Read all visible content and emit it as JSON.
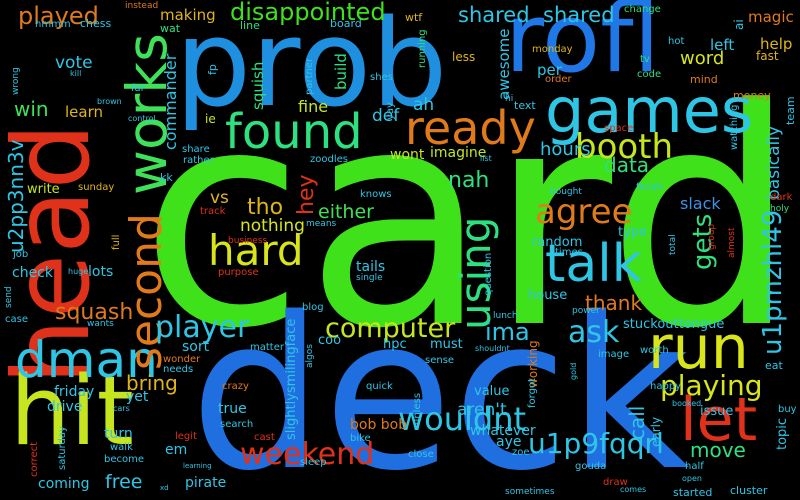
{
  "title": "word cloud",
  "background": "#000000",
  "words": [
    {
      "text": "card",
      "color": "#3fe11a"
    },
    {
      "text": "deck",
      "color": "#1f6fe0"
    },
    {
      "text": "head",
      "color": "#e0311a"
    },
    {
      "text": "hit",
      "color": "#c6e51f"
    },
    {
      "text": "prob",
      "color": "#1f8fe0"
    },
    {
      "text": "rofl",
      "color": "#1f78e6"
    },
    {
      "text": "games",
      "color": "#2fc6e6"
    },
    {
      "text": "works",
      "color": "#3fe15a"
    },
    {
      "text": "found",
      "color": "#2de080"
    },
    {
      "text": "ready",
      "color": "#e07a1a"
    },
    {
      "text": "run",
      "color": "#d7e51a"
    },
    {
      "text": "let",
      "color": "#e0311a"
    },
    {
      "text": "talk",
      "color": "#2fc6e6"
    },
    {
      "text": "dman",
      "color": "#2fc6e6"
    },
    {
      "text": "second",
      "color": "#e07a1a"
    },
    {
      "text": "hard",
      "color": "#d7e51a"
    },
    {
      "text": "using",
      "color": "#2de080"
    },
    {
      "text": "booth",
      "color": "#c6e51f"
    },
    {
      "text": "agree",
      "color": "#e07a1a"
    },
    {
      "text": "player",
      "color": "#2fc6e6"
    },
    {
      "text": "weekend",
      "color": "#e0311a"
    },
    {
      "text": "wouldnt",
      "color": "#2fc6e6"
    },
    {
      "text": "u1p9fqqrl",
      "color": "#2fc6e6"
    },
    {
      "text": "computer",
      "color": "#c6e51f"
    },
    {
      "text": "u1pmzhl49",
      "color": "#2fc6e6"
    },
    {
      "text": "playing",
      "color": "#d7e51a"
    },
    {
      "text": "gets",
      "color": "#2de080"
    },
    {
      "text": "disappointed",
      "color": "#3fe11a"
    },
    {
      "text": "shared",
      "color": "#2fc6e6"
    },
    {
      "text": "shared",
      "color": "#2fc6e6"
    },
    {
      "text": "magic",
      "color": "#e07a1a"
    },
    {
      "text": "played",
      "color": "#e07a1a"
    },
    {
      "text": "u2pp3nn3v",
      "color": "#2fc6e6"
    },
    {
      "text": "squash",
      "color": "#e07a1a"
    },
    {
      "text": "bring",
      "color": "#e0b51a"
    },
    {
      "text": "ask",
      "color": "#2fc6e6"
    },
    {
      "text": "ima",
      "color": "#2fc6e6"
    },
    {
      "text": "nah",
      "color": "#2de080"
    },
    {
      "text": "hey",
      "color": "#e0311a"
    },
    {
      "text": "tho",
      "color": "#e0b51a"
    },
    {
      "text": "vs",
      "color": "#e0b51a"
    },
    {
      "text": "nothing",
      "color": "#d7e51a"
    },
    {
      "text": "either",
      "color": "#3fe15a"
    },
    {
      "text": "thank",
      "color": "#e07a1a"
    },
    {
      "text": "call",
      "color": "#2fc6e6"
    },
    {
      "text": "move",
      "color": "#2de080"
    },
    {
      "text": "data",
      "color": "#2de080"
    },
    {
      "text": "hours",
      "color": "#2fc6e6"
    },
    {
      "text": "word",
      "color": "#d7e51a"
    },
    {
      "text": "basically",
      "color": "#2fc6e6"
    },
    {
      "text": "slack",
      "color": "#3f8fe6"
    },
    {
      "text": "commander",
      "color": "#2fc6e6"
    },
    {
      "text": "win",
      "color": "#3fe15a"
    },
    {
      "text": "vote",
      "color": "#2fc6e6"
    },
    {
      "text": "learn",
      "color": "#e0b51a"
    },
    {
      "text": "making",
      "color": "#e0b51a"
    },
    {
      "text": "left",
      "color": "#2fc6e6"
    },
    {
      "text": "help",
      "color": "#e0b51a"
    },
    {
      "text": "per",
      "color": "#2fc6e6"
    },
    {
      "text": "awesome",
      "color": "#2fc6e6"
    },
    {
      "text": "def",
      "color": "#2fc6e6"
    },
    {
      "text": "ah",
      "color": "#2fc6e6"
    },
    {
      "text": "fine",
      "color": "#c6e51f"
    },
    {
      "text": "build",
      "color": "#2de080"
    },
    {
      "text": "squish",
      "color": "#2de080"
    },
    {
      "text": "imagine",
      "color": "#c6e51f"
    },
    {
      "text": "wont",
      "color": "#c6e51f"
    },
    {
      "text": "chess",
      "color": "#2fc6e6"
    },
    {
      "text": "hmmm",
      "color": "#2fc6e6"
    },
    {
      "text": "instead",
      "color": "#e07a1a"
    },
    {
      "text": "board",
      "color": "#2fc6e6"
    },
    {
      "text": "wtf",
      "color": "#e0b51a"
    },
    {
      "text": "change",
      "color": "#2de080"
    },
    {
      "text": "wat",
      "color": "#2de080"
    },
    {
      "text": "line",
      "color": "#2de080"
    },
    {
      "text": "running",
      "color": "#2de080"
    },
    {
      "text": "less",
      "color": "#e0b51a"
    },
    {
      "text": "monday",
      "color": "#e0b51a"
    },
    {
      "text": "tv",
      "color": "#2de080"
    },
    {
      "text": "code",
      "color": "#2de080"
    },
    {
      "text": "fast",
      "color": "#e0b51a"
    },
    {
      "text": "mind",
      "color": "#e07a1a"
    },
    {
      "text": "money",
      "color": "#e07a1a"
    },
    {
      "text": "team",
      "color": "#2fc6e6"
    },
    {
      "text": "hot",
      "color": "#2fc6e6"
    },
    {
      "text": "ai",
      "color": "#2fc6e6"
    },
    {
      "text": "order",
      "color": "#e07a1a"
    },
    {
      "text": "text",
      "color": "#2fc6e6"
    },
    {
      "text": "space",
      "color": "#e0311a"
    },
    {
      "text": "watching",
      "color": "#2fc6e6"
    },
    {
      "text": "fp",
      "color": "#2fc6e6"
    },
    {
      "text": "shes",
      "color": "#2fc6e6"
    },
    {
      "text": "yay",
      "color": "#2fc6e6"
    },
    {
      "text": "partner",
      "color": "#2fc6e6"
    },
    {
      "text": "ie",
      "color": "#c6e51f"
    },
    {
      "text": "share",
      "color": "#2fc6e6"
    },
    {
      "text": "rather",
      "color": "#2fc6e6"
    },
    {
      "text": "kk",
      "color": "#2fc6e6"
    },
    {
      "text": "zoodles",
      "color": "#2fc6e6"
    },
    {
      "text": "sunday",
      "color": "#e0b51a"
    },
    {
      "text": "write",
      "color": "#c6e51f"
    },
    {
      "text": "knows",
      "color": "#2fc6e6"
    },
    {
      "text": "bought",
      "color": "#2fc6e6"
    },
    {
      "text": "finish",
      "color": "#2fc6e6"
    },
    {
      "text": "dark",
      "color": "#e0311a"
    },
    {
      "text": "holy",
      "color": "#2de080"
    },
    {
      "text": "track",
      "color": "#e0311a"
    },
    {
      "text": "means",
      "color": "#2fc6e6"
    },
    {
      "text": "business",
      "color": "#e0311a"
    },
    {
      "text": "random",
      "color": "#2fc6e6"
    },
    {
      "text": "type",
      "color": "#2fc6e6"
    },
    {
      "text": "times",
      "color": "#2fc6e6"
    },
    {
      "text": "total",
      "color": "#2fc6e6"
    },
    {
      "text": "group",
      "color": "#e0311a"
    },
    {
      "text": "almost",
      "color": "#e0311a"
    },
    {
      "text": "job",
      "color": "#2fc6e6"
    },
    {
      "text": "full",
      "color": "#e0b51a"
    },
    {
      "text": "check",
      "color": "#2fc6e6"
    },
    {
      "text": "lots",
      "color": "#2fc6e6"
    },
    {
      "text": "huge",
      "color": "#2fc6e6"
    },
    {
      "text": "purpose",
      "color": "#e0311a"
    },
    {
      "text": "tails",
      "color": "#2fc6e6"
    },
    {
      "text": "single",
      "color": "#2fc6e6"
    },
    {
      "text": "question",
      "color": "#2fc6e6"
    },
    {
      "text": "house",
      "color": "#2fc6e6"
    },
    {
      "text": "lunch",
      "color": "#2fc6e6"
    },
    {
      "text": "power",
      "color": "#2fc6e6"
    },
    {
      "text": "send",
      "color": "#2fc6e6"
    },
    {
      "text": "case",
      "color": "#2fc6e6"
    },
    {
      "text": "wants",
      "color": "#2fc6e6"
    },
    {
      "text": "blog",
      "color": "#2fc6e6"
    },
    {
      "text": "coo",
      "color": "#2fc6e6"
    },
    {
      "text": "hpc",
      "color": "#2fc6e6"
    },
    {
      "text": "must",
      "color": "#2fc6e6"
    },
    {
      "text": "stuckouttongue",
      "color": "#2fc6e6"
    },
    {
      "text": "working",
      "color": "#e07a1a"
    },
    {
      "text": "shouldnt",
      "color": "#2fc6e6"
    },
    {
      "text": "image",
      "color": "#2fc6e6"
    },
    {
      "text": "worth",
      "color": "#2fc6e6"
    },
    {
      "text": "eat",
      "color": "#2fc6e6"
    },
    {
      "text": "slightlysmilingface",
      "color": "#2fc6e6"
    },
    {
      "text": "algos",
      "color": "#2fc6e6"
    },
    {
      "text": "matter",
      "color": "#2fc6e6"
    },
    {
      "text": "sense",
      "color": "#2fc6e6"
    },
    {
      "text": "sort",
      "color": "#2fc6e6"
    },
    {
      "text": "wonder",
      "color": "#e07a1a"
    },
    {
      "text": "needs",
      "color": "#2fc6e6"
    },
    {
      "text": "friday",
      "color": "#2fc6e6"
    },
    {
      "text": "drive",
      "color": "#2fc6e6"
    },
    {
      "text": "yet",
      "color": "#2fc6e6"
    },
    {
      "text": "crazy",
      "color": "#e07a1a"
    },
    {
      "text": "quick",
      "color": "#2fc6e6"
    },
    {
      "text": "value",
      "color": "#2fc6e6"
    },
    {
      "text": "aren't",
      "color": "#2fc6e6"
    },
    {
      "text": "happy",
      "color": "#2fc6e6"
    },
    {
      "text": "booked",
      "color": "#2fc6e6"
    },
    {
      "text": "issue",
      "color": "#2fc6e6"
    },
    {
      "text": "topic",
      "color": "#2fc6e6"
    },
    {
      "text": "buy",
      "color": "#2fc6e6"
    },
    {
      "text": "true",
      "color": "#2fc6e6"
    },
    {
      "text": "search",
      "color": "#2fc6e6"
    },
    {
      "text": "legit",
      "color": "#e0311a"
    },
    {
      "text": "turn",
      "color": "#2fc6e6"
    },
    {
      "text": "walk",
      "color": "#2fc6e6"
    },
    {
      "text": "become",
      "color": "#2fc6e6"
    },
    {
      "text": "em",
      "color": "#2fc6e6"
    },
    {
      "text": "cast",
      "color": "#e0311a"
    },
    {
      "text": "bob bob",
      "color": "#e07a1a"
    },
    {
      "text": "bike",
      "color": "#2fc6e6"
    },
    {
      "text": "sleep",
      "color": "#2fc6e6"
    },
    {
      "text": "close",
      "color": "#2fc6e6"
    },
    {
      "text": "aye",
      "color": "#2fc6e6"
    },
    {
      "text": "whatever",
      "color": "#2fc6e6"
    },
    {
      "text": "zoe",
      "color": "#2fc6e6"
    },
    {
      "text": "gouda",
      "color": "#2fc6e6"
    },
    {
      "text": "draw",
      "color": "#e0311a"
    },
    {
      "text": "early",
      "color": "#2fc6e6"
    },
    {
      "text": "half",
      "color": "#2fc6e6"
    },
    {
      "text": "open",
      "color": "#2fc6e6"
    },
    {
      "text": "comes",
      "color": "#2fc6e6"
    },
    {
      "text": "started",
      "color": "#2fc6e6"
    },
    {
      "text": "cluster",
      "color": "#2fc6e6"
    },
    {
      "text": "sometimes",
      "color": "#2fc6e6"
    },
    {
      "text": "coming",
      "color": "#2fc6e6"
    },
    {
      "text": "free",
      "color": "#2fc6e6"
    },
    {
      "text": "pirate",
      "color": "#2fc6e6"
    },
    {
      "text": "learning",
      "color": "#2fc6e6"
    },
    {
      "text": "saturday",
      "color": "#2fc6e6"
    },
    {
      "text": "correct",
      "color": "#e0311a"
    },
    {
      "text": "cars",
      "color": "#2fc6e6"
    },
    {
      "text": "forgot",
      "color": "#2fc6e6"
    },
    {
      "text": "unless",
      "color": "#2fc6e6"
    },
    {
      "text": "wrong",
      "color": "#2fc6e6"
    },
    {
      "text": "kill",
      "color": "#2fc6e6"
    },
    {
      "text": "far",
      "color": "#2fc6e6"
    },
    {
      "text": "brown",
      "color": "#2fc6e6"
    },
    {
      "text": "control",
      "color": "#2fc6e6"
    },
    {
      "text": "xd",
      "color": "#2fc6e6"
    },
    {
      "text": "list",
      "color": "#2fc6e6"
    },
    {
      "text": "hi",
      "color": "#2fc6e6"
    },
    {
      "text": "gold",
      "color": "#2fc6e6"
    }
  ]
}
